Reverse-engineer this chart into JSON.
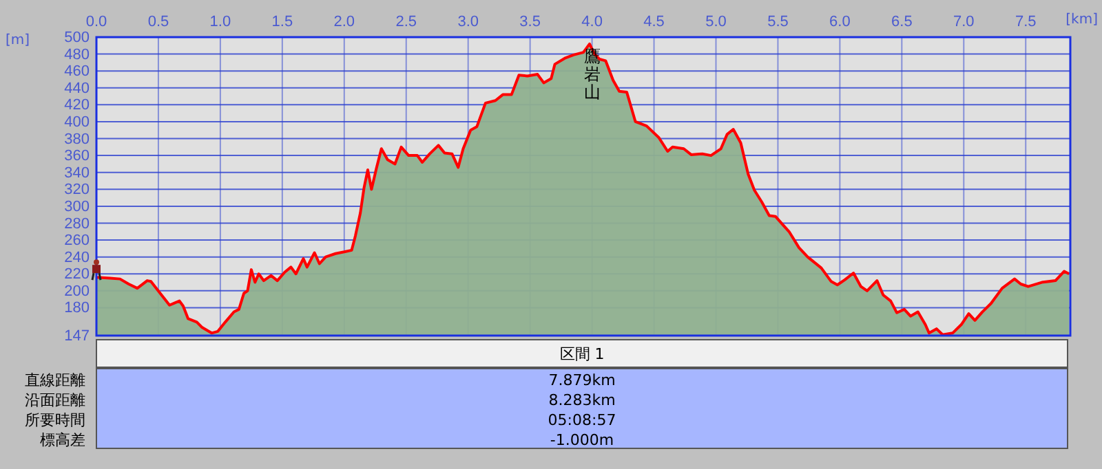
{
  "chart_data": {
    "type": "area",
    "xlabel": "[km]",
    "ylabel": "[m]",
    "color": "#ff0000",
    "grid": true,
    "xlim": [
      0,
      7.86
    ],
    "ylim": [
      147,
      500
    ],
    "xticks": [
      {
        "value": 0,
        "label": "0.0"
      },
      {
        "value": 0.5,
        "label": "0.5"
      },
      {
        "value": 1,
        "label": "1.0"
      },
      {
        "value": 1.5,
        "label": "1.5"
      },
      {
        "value": 2,
        "label": "2.0"
      },
      {
        "value": 2.5,
        "label": "2.5"
      },
      {
        "value": 3,
        "label": "3.0"
      },
      {
        "value": 3.5,
        "label": "3.5"
      },
      {
        "value": 4,
        "label": "4.0"
      },
      {
        "value": 4.5,
        "label": "4.5"
      },
      {
        "value": 5,
        "label": "5.0"
      },
      {
        "value": 5.5,
        "label": "5.5"
      },
      {
        "value": 6,
        "label": "6.0"
      },
      {
        "value": 6.5,
        "label": "6.5"
      },
      {
        "value": 7,
        "label": "7.0"
      },
      {
        "value": 7.5,
        "label": "7.5"
      }
    ],
    "yticks": [
      147,
      180,
      200,
      220,
      240,
      260,
      280,
      300,
      320,
      340,
      360,
      380,
      400,
      420,
      440,
      460,
      480,
      500
    ],
    "x": [
      0,
      0.11,
      0.19,
      0.26,
      0.33,
      0.41,
      0.44,
      0.52,
      0.59,
      0.67,
      0.7,
      0.74,
      0.81,
      0.85,
      0.93,
      0.98,
      1.04,
      1.11,
      1.15,
      1.19,
      1.22,
      1.25,
      1.28,
      1.31,
      1.35,
      1.41,
      1.46,
      1.52,
      1.57,
      1.61,
      1.67,
      1.7,
      1.76,
      1.8,
      1.85,
      1.93,
      2.0,
      2.06,
      2.09,
      2.13,
      2.16,
      2.19,
      2.22,
      2.26,
      2.3,
      2.35,
      2.41,
      2.46,
      2.52,
      2.59,
      2.63,
      2.69,
      2.76,
      2.81,
      2.87,
      2.92,
      2.96,
      3.02,
      3.07,
      3.14,
      3.22,
      3.28,
      3.35,
      3.41,
      3.48,
      3.56,
      3.61,
      3.67,
      3.7,
      3.78,
      3.85,
      3.93,
      3.98,
      4.02,
      4.06,
      4.11,
      4.17,
      4.22,
      4.28,
      4.35,
      4.44,
      4.54,
      4.61,
      4.65,
      4.74,
      4.8,
      4.89,
      4.96,
      5.04,
      5.09,
      5.14,
      5.2,
      5.26,
      5.31,
      5.37,
      5.43,
      5.48,
      5.54,
      5.59,
      5.67,
      5.74,
      5.85,
      5.93,
      5.98,
      6.04,
      6.11,
      6.17,
      6.22,
      6.3,
      6.35,
      6.41,
      6.46,
      6.52,
      6.57,
      6.63,
      6.69,
      6.72,
      6.78,
      6.83,
      6.91,
      6.98,
      7.04,
      7.09,
      7.15,
      7.22,
      7.31,
      7.41,
      7.46,
      7.52,
      7.63,
      7.74,
      7.81,
      7.85
    ],
    "values": [
      216,
      215,
      214,
      208,
      203,
      212,
      211,
      196,
      183,
      188,
      182,
      167,
      163,
      157,
      150,
      152,
      163,
      175,
      178,
      197,
      200,
      225,
      210,
      220,
      212,
      218,
      212,
      222,
      228,
      220,
      238,
      228,
      245,
      232,
      240,
      244,
      246,
      248,
      265,
      292,
      322,
      343,
      320,
      345,
      368,
      355,
      350,
      370,
      360,
      360,
      352,
      362,
      372,
      363,
      362,
      346,
      368,
      390,
      394,
      422,
      425,
      432,
      432,
      455,
      454,
      456,
      446,
      451,
      468,
      475,
      479,
      482,
      492,
      480,
      474,
      472,
      449,
      436,
      435,
      400,
      395,
      381,
      365,
      370,
      368,
      361,
      362,
      360,
      368,
      385,
      391,
      375,
      338,
      319,
      305,
      289,
      288,
      278,
      270,
      251,
      240,
      227,
      211,
      207,
      213,
      221,
      205,
      200,
      212,
      195,
      188,
      174,
      178,
      170,
      175,
      160,
      150,
      155,
      148,
      150,
      160,
      173,
      165,
      175,
      185,
      203,
      214,
      208,
      205,
      210,
      212,
      223,
      220
    ],
    "annotations": [
      {
        "text": "鷹岩山",
        "x": 4.0,
        "y": 490
      },
      "区間 1",
      "直線距離",
      "7.879km",
      "沿面距離",
      "8.283km",
      "所要時間",
      "05:08:57",
      "標高差",
      "-1.000m"
    ]
  }
}
